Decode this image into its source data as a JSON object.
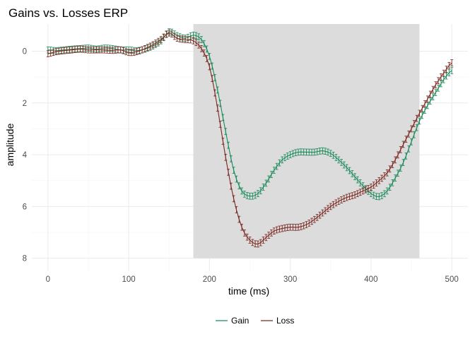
{
  "chart_data": {
    "type": "line",
    "title": "Gains vs. Losses ERP",
    "xlabel": "time (ms)",
    "ylabel": "amplitude",
    "xlim": [
      -20,
      520
    ],
    "ylim": [
      -1.05,
      8.5
    ],
    "y_reversed": true,
    "x_ticks": [
      0,
      100,
      200,
      300,
      400,
      500
    ],
    "x_tick_labels": [
      "0",
      "100",
      "200",
      "300",
      "400",
      "500"
    ],
    "y_ticks": [
      0,
      2,
      4,
      6,
      8
    ],
    "y_tick_labels": [
      "0",
      "2",
      "4",
      "6",
      "8"
    ],
    "grid": true,
    "legend_position": "bottom",
    "shaded_region": {
      "x": [
        180,
        460
      ],
      "y": [
        -1.05,
        8.0
      ],
      "color": "#dcdcdc"
    },
    "error_bar_half_width": 0.12,
    "series": [
      {
        "name": "Gain",
        "color": "#1a8a5a",
        "points": [
          [
            0,
            -0.05
          ],
          [
            10,
            -0.02
          ],
          [
            20,
            -0.05
          ],
          [
            30,
            -0.08
          ],
          [
            40,
            -0.1
          ],
          [
            50,
            -0.12
          ],
          [
            60,
            -0.08
          ],
          [
            70,
            -0.12
          ],
          [
            80,
            -0.1
          ],
          [
            90,
            -0.05
          ],
          [
            100,
            -0.05
          ],
          [
            110,
            -0.02
          ],
          [
            120,
            -0.08
          ],
          [
            130,
            -0.2
          ],
          [
            140,
            -0.4
          ],
          [
            150,
            -0.75
          ],
          [
            160,
            -0.6
          ],
          [
            170,
            -0.5
          ],
          [
            180,
            -0.62
          ],
          [
            190,
            -0.45
          ],
          [
            200,
            0.2
          ],
          [
            210,
            1.5
          ],
          [
            220,
            3.1
          ],
          [
            230,
            4.6
          ],
          [
            240,
            5.4
          ],
          [
            250,
            5.6
          ],
          [
            260,
            5.5
          ],
          [
            270,
            5.1
          ],
          [
            280,
            4.6
          ],
          [
            290,
            4.2
          ],
          [
            300,
            4.0
          ],
          [
            310,
            3.9
          ],
          [
            320,
            3.9
          ],
          [
            330,
            3.9
          ],
          [
            340,
            3.85
          ],
          [
            350,
            3.95
          ],
          [
            360,
            4.2
          ],
          [
            370,
            4.5
          ],
          [
            380,
            4.85
          ],
          [
            390,
            5.2
          ],
          [
            400,
            5.5
          ],
          [
            410,
            5.62
          ],
          [
            420,
            5.4
          ],
          [
            430,
            4.9
          ],
          [
            440,
            4.3
          ],
          [
            450,
            3.5
          ],
          [
            460,
            2.7
          ],
          [
            470,
            2.1
          ],
          [
            480,
            1.6
          ],
          [
            490,
            1.1
          ],
          [
            500,
            0.75
          ]
        ]
      },
      {
        "name": "Loss",
        "color": "#7a2820",
        "points": [
          [
            0,
            0.1
          ],
          [
            10,
            0.02
          ],
          [
            20,
            -0.02
          ],
          [
            30,
            -0.05
          ],
          [
            40,
            -0.08
          ],
          [
            50,
            -0.05
          ],
          [
            60,
            -0.05
          ],
          [
            70,
            -0.05
          ],
          [
            80,
            -0.03
          ],
          [
            90,
            -0.05
          ],
          [
            100,
            0.05
          ],
          [
            110,
            0.02
          ],
          [
            120,
            -0.1
          ],
          [
            130,
            -0.25
          ],
          [
            140,
            -0.45
          ],
          [
            150,
            -0.7
          ],
          [
            160,
            -0.5
          ],
          [
            170,
            -0.45
          ],
          [
            180,
            -0.4
          ],
          [
            190,
            -0.1
          ],
          [
            200,
            0.6
          ],
          [
            210,
            2.2
          ],
          [
            220,
            4.1
          ],
          [
            230,
            5.7
          ],
          [
            240,
            6.8
          ],
          [
            250,
            7.3
          ],
          [
            260,
            7.45
          ],
          [
            270,
            7.2
          ],
          [
            280,
            6.95
          ],
          [
            290,
            6.85
          ],
          [
            300,
            6.8
          ],
          [
            310,
            6.8
          ],
          [
            320,
            6.7
          ],
          [
            330,
            6.5
          ],
          [
            340,
            6.25
          ],
          [
            350,
            6.0
          ],
          [
            360,
            5.8
          ],
          [
            370,
            5.65
          ],
          [
            380,
            5.55
          ],
          [
            390,
            5.4
          ],
          [
            400,
            5.25
          ],
          [
            410,
            5.0
          ],
          [
            420,
            4.7
          ],
          [
            430,
            4.2
          ],
          [
            440,
            3.6
          ],
          [
            450,
            3.0
          ],
          [
            460,
            2.4
          ],
          [
            470,
            1.85
          ],
          [
            480,
            1.3
          ],
          [
            490,
            0.85
          ],
          [
            500,
            0.45
          ]
        ]
      }
    ]
  }
}
